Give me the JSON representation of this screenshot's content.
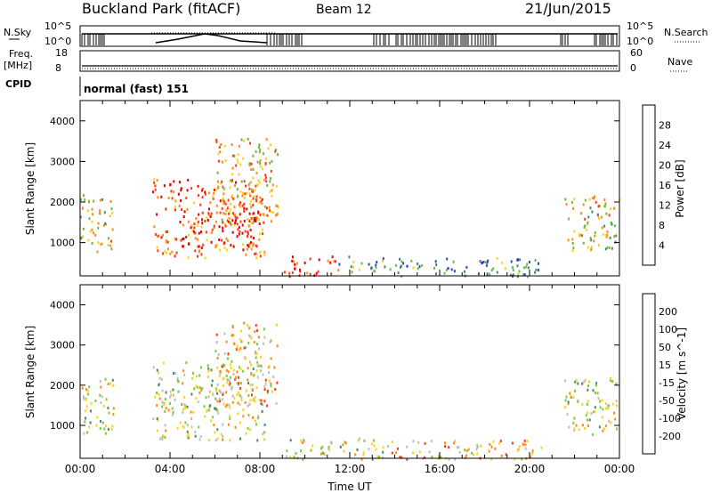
{
  "header": {
    "station": "Buckland Park (fitACF)",
    "beam": "Beam 12",
    "date": "21/Jun/2015"
  },
  "status_panels": {
    "nsky_label": "N.Sky",
    "nsky_ticks": [
      "10^5",
      "10^0"
    ],
    "nsearch_label": "N.Search",
    "nsearch_ticks": [
      "10^5",
      "10^0"
    ],
    "freq_label": "Freq.",
    "freq_unit": "[MHz]",
    "freq_ticks": [
      "18",
      "8"
    ],
    "nave_label": "Nave",
    "nave_ticks": [
      "60",
      "0"
    ],
    "cpid_label": "CPID",
    "cpid_value": "normal (fast) 151"
  },
  "chart_data": [
    {
      "type": "heatmap",
      "name": "power-panel",
      "ylabel": "Slant Range [km]",
      "ylim": [
        180,
        4500
      ],
      "yticks": [
        "1000",
        "2000",
        "3000",
        "4000"
      ],
      "xlim": [
        0,
        24
      ],
      "colorbar_label": "Power [dB]",
      "colorbar_ticks": [
        "4",
        "8",
        "12",
        "16",
        "20",
        "24",
        "28"
      ],
      "colorbar_colors": [
        "#1a1aff",
        "#2d4fa8",
        "#4a8a6a",
        "#6fb84a",
        "#ffd21a",
        "#ff8c1a",
        "#ff3a1a",
        "#e60000"
      ],
      "regions": [
        {
          "t": [
            0.0,
            1.5
          ],
          "r": [
            800,
            2200
          ],
          "level": 0.55
        },
        {
          "t": [
            3.2,
            8.2
          ],
          "r": [
            650,
            2600
          ],
          "level": 0.75
        },
        {
          "t": [
            4.5,
            8.0
          ],
          "r": [
            900,
            1900
          ],
          "level": 0.95
        },
        {
          "t": [
            6.0,
            8.8
          ],
          "r": [
            1500,
            3600
          ],
          "level": 0.6
        },
        {
          "t": [
            9.0,
            11.5
          ],
          "r": [
            180,
            700
          ],
          "level": 0.9
        },
        {
          "t": [
            11.5,
            13.5
          ],
          "r": [
            300,
            700
          ],
          "level": 0.35
        },
        {
          "t": [
            13.5,
            20.5
          ],
          "r": [
            180,
            650
          ],
          "level": 0.3
        },
        {
          "t": [
            21.5,
            24.0
          ],
          "r": [
            800,
            2200
          ],
          "level": 0.55
        }
      ]
    },
    {
      "type": "heatmap",
      "name": "velocity-panel",
      "xlabel": "Time UT",
      "ylabel": "Slant Range [km]",
      "ylim": [
        180,
        4500
      ],
      "yticks": [
        "1000",
        "2000",
        "3000",
        "4000"
      ],
      "xlim": [
        0,
        24
      ],
      "xticks": [
        "00:00",
        "04:00",
        "08:00",
        "12:00",
        "16:00",
        "20:00",
        "00:00"
      ],
      "colorbar_label": "Velocity [m s^-1]",
      "colorbar_ticks": [
        "200",
        "100",
        "50",
        "15",
        "-15",
        "-50",
        "-100",
        "-200"
      ],
      "colorbar_colors": [
        "#2020c8",
        "#2d4fa8",
        "#4a8a6a",
        "#7ccc3a",
        "#bebebe",
        "#ffd21a",
        "#ff8c1a",
        "#ff3a1a",
        "#e60000"
      ],
      "regions": [
        {
          "t": [
            0.0,
            1.5
          ],
          "r": [
            800,
            2200
          ],
          "level": 0.5
        },
        {
          "t": [
            3.2,
            8.2
          ],
          "r": [
            650,
            2600
          ],
          "level": 0.5
        },
        {
          "t": [
            6.0,
            8.8
          ],
          "r": [
            1500,
            3600
          ],
          "level": 0.62
        },
        {
          "t": [
            9.0,
            13.5
          ],
          "r": [
            180,
            700
          ],
          "level": 0.5
        },
        {
          "t": [
            13.5,
            20.5
          ],
          "r": [
            180,
            650
          ],
          "level": 0.62
        },
        {
          "t": [
            21.5,
            24.0
          ],
          "r": [
            800,
            2200
          ],
          "level": 0.5
        }
      ]
    }
  ]
}
